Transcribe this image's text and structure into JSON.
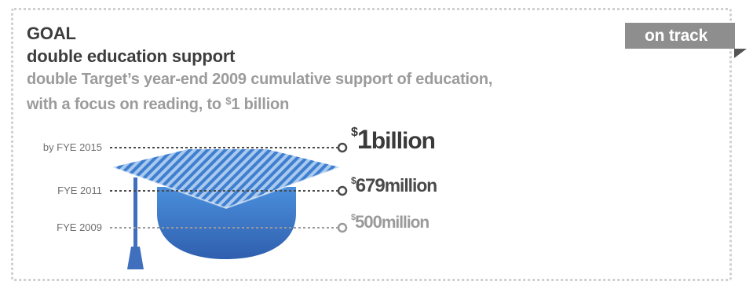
{
  "header": {
    "title_line1": "GOAL",
    "title_line2": "double education support",
    "desc_line1": "double Target’s year-end 2009 cumulative support of education,",
    "desc_line2_prefix": "with a focus on reading, to ",
    "desc_line2_currency": "$",
    "desc_line2_suffix": "1 billion"
  },
  "status_badge": {
    "label": "on track"
  },
  "milestones": [
    {
      "label": "by FYE 2015",
      "currency": "$",
      "amount": "1",
      "unit": "billion",
      "value_millions": 1000,
      "color": "#3a3a3a"
    },
    {
      "label": "FYE 2011",
      "currency": "$",
      "amount": "679",
      "unit": "million",
      "value_millions": 679,
      "color": "#4a4a4a"
    },
    {
      "label": "FYE 2009",
      "currency": "$",
      "amount": "500",
      "unit": "million",
      "value_millions": 500,
      "color": "#9a9a9a"
    }
  ],
  "colors": {
    "cap_stripe_light": "#a9c9ee",
    "cap_stripe_dark": "#3f7fd0",
    "crown_top": "#4a8fdc",
    "crown_bottom": "#2f5fae",
    "tassel": "#3f6fbd",
    "leader_line": "#4a4a4a",
    "leader_line_light": "#9a9a9a"
  },
  "icon": "graduation-cap-icon"
}
